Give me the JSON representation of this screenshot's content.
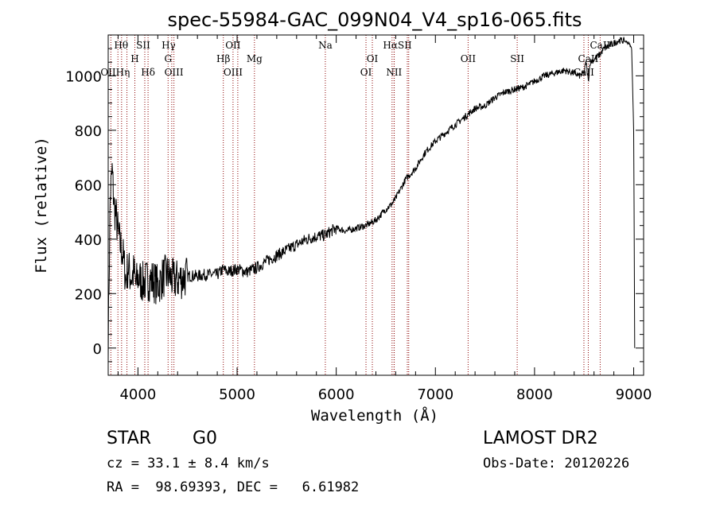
{
  "chart_data": {
    "type": "line",
    "title": "spec-55984-GAC_099N04_V4_sp16-065.fits",
    "xlabel": "Wavelength (Å)",
    "ylabel": "Flux (relative)",
    "xlim": [
      3700,
      9100
    ],
    "ylim": [
      -100,
      1150
    ],
    "xticks": [
      4000,
      5000,
      6000,
      7000,
      8000,
      9000
    ],
    "yticks": [
      0,
      200,
      400,
      600,
      800,
      1000
    ],
    "grid": false,
    "series_color": "#000000",
    "line_color": "#8b0000",
    "spectrum": {
      "x": [
        3700,
        3720,
        3740,
        3760,
        3780,
        3800,
        3820,
        3840,
        3860,
        3880,
        3900,
        3920,
        3940,
        3960,
        3980,
        4000,
        4050,
        4100,
        4150,
        4200,
        4250,
        4300,
        4350,
        4400,
        4500,
        4600,
        4700,
        4800,
        4860,
        4900,
        5000,
        5100,
        5200,
        5300,
        5400,
        5500,
        5600,
        5700,
        5800,
        5890,
        5950,
        6000,
        6100,
        6200,
        6300,
        6400,
        6500,
        6563,
        6600,
        6700,
        6800,
        6900,
        7000,
        7100,
        7200,
        7300,
        7400,
        7500,
        7600,
        7700,
        7800,
        7900,
        8000,
        8100,
        8200,
        8300,
        8400,
        8450,
        8498,
        8520,
        8542,
        8560,
        8600,
        8662,
        8700,
        8750,
        8800,
        8850,
        8900,
        8950,
        8980,
        9000,
        9010
      ],
      "y": [
        20,
        550,
        650,
        520,
        480,
        420,
        380,
        360,
        310,
        250,
        300,
        270,
        260,
        280,
        230,
        260,
        240,
        250,
        250,
        230,
        260,
        270,
        250,
        250,
        265,
        265,
        270,
        270,
        290,
        280,
        290,
        280,
        295,
        320,
        340,
        360,
        380,
        400,
        410,
        415,
        430,
        440,
        430,
        440,
        450,
        470,
        510,
        530,
        550,
        620,
        660,
        720,
        760,
        790,
        820,
        850,
        880,
        890,
        920,
        940,
        950,
        960,
        980,
        1000,
        1010,
        1020,
        1010,
        1000,
        1010,
        1050,
        980,
        1050,
        1060,
        1080,
        1100,
        1110,
        1120,
        1130,
        1130,
        1120,
        1100,
        800,
        0
      ]
    },
    "emission_lines": [
      {
        "label": "Hθ",
        "x": 3798,
        "row": 0,
        "dx": 4
      },
      {
        "label": "SII",
        "x": 4069,
        "row": 0,
        "dx": -2
      },
      {
        "label": "Hγ",
        "x": 4341,
        "row": 0,
        "dx": -4
      },
      {
        "label": "OII",
        "x": 5007,
        "row": 0,
        "dx": -6
      },
      {
        "label": "Na",
        "x": 5890,
        "row": 0,
        "dx": 0
      },
      {
        "label": "HαSII",
        "x": 6585,
        "row": 0,
        "dx": 4
      },
      {
        "label": "CaII",
        "x": 8662,
        "row": 0,
        "dx": 0
      },
      {
        "label": "H",
        "x": 3969,
        "row": 1,
        "dx": 0
      },
      {
        "label": "G",
        "x": 4304,
        "row": 1,
        "dx": 0
      },
      {
        "label": "Hβ",
        "x": 4861,
        "row": 1,
        "dx": 0
      },
      {
        "label": "Mg",
        "x": 5175,
        "row": 1,
        "dx": 0
      },
      {
        "label": "OI",
        "x": 6364,
        "row": 1,
        "dx": 0
      },
      {
        "label": "OII",
        "x": 7330,
        "row": 1,
        "dx": 0
      },
      {
        "label": "SII",
        "x": 7825,
        "row": 1,
        "dx": 0
      },
      {
        "label": "CaII",
        "x": 8542,
        "row": 1,
        "dx": 0
      },
      {
        "label": "OIIHη",
        "x": 3835,
        "row": 2,
        "dx": -8
      },
      {
        "label": "Hδ",
        "x": 4102,
        "row": 2,
        "dx": 0
      },
      {
        "label": "OIII",
        "x": 4363,
        "row": 2,
        "dx": 0
      },
      {
        "label": "OIII",
        "x": 4959,
        "row": 2,
        "dx": 0
      },
      {
        "label": "OI",
        "x": 6300,
        "row": 2,
        "dx": 0
      },
      {
        "label": "NII",
        "x": 6583,
        "row": 2,
        "dx": 0
      },
      {
        "label": "CaII",
        "x": 8498,
        "row": 2,
        "dx": 0
      }
    ],
    "extra_line_positions": [
      3727,
      3889,
      4304,
      4363,
      4959,
      5007,
      5175,
      6563,
      6717,
      6731,
      7330,
      7825,
      8498,
      8542,
      8662
    ]
  },
  "info": {
    "object_class": "STAR",
    "subclass": "G0",
    "survey": "LAMOST DR2",
    "cz": "cz = 33.1 ± 8.4 km/s",
    "obs_date": "Obs-Date: 20120226",
    "coords": "RA =  98.69393, DEC =   6.61982"
  }
}
